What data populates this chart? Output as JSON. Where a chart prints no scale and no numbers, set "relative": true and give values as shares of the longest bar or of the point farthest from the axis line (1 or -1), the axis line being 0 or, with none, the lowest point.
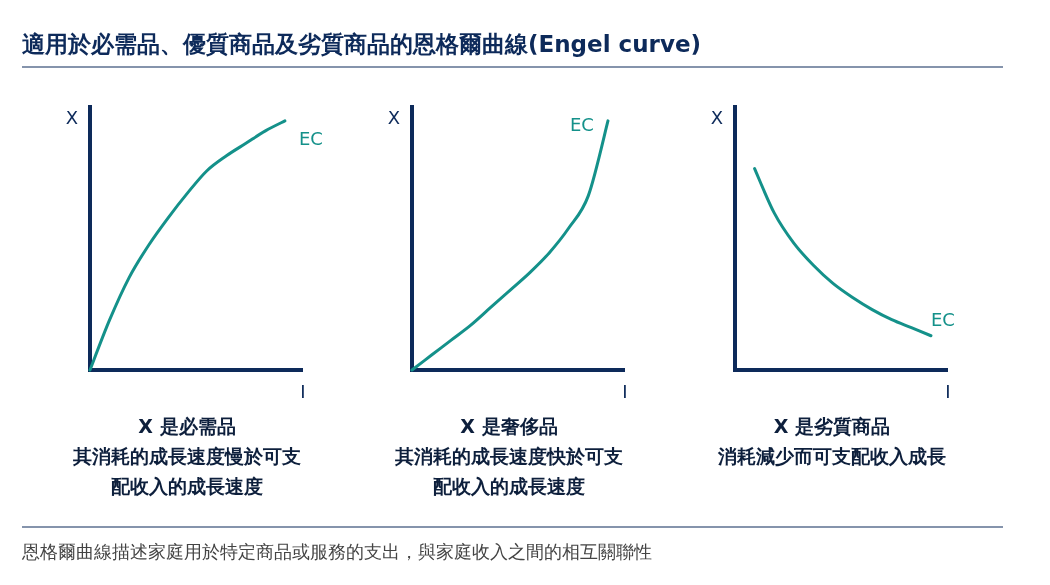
{
  "chart_data": [
    {
      "type": "line",
      "title": "適用於必需品、優質商品及劣質商品的恩格爾曲線(Engel curve)",
      "xlabel": "I",
      "ylabel": "X",
      "relative": true,
      "categories": [
        null,
        null,
        null,
        null,
        null,
        null,
        null,
        null,
        null,
        null,
        null
      ],
      "series": [
        {
          "name": "EC",
          "color": "#14918a",
          "values": [
            0,
            0.2,
            0.37,
            0.5,
            0.61,
            0.71,
            0.8,
            0.86,
            0.91,
            0.96,
            1
          ]
        }
      ],
      "annotations": [
        "X 是必需品",
        "其消耗的成長速度慢於可支配收入的成長速度"
      ]
    },
    {
      "type": "line",
      "xlabel": "I",
      "ylabel": "X",
      "relative": true,
      "categories": [
        null,
        null,
        null,
        null,
        null,
        null,
        null,
        null,
        null,
        null,
        null
      ],
      "series": [
        {
          "name": "EC",
          "color": "#14918a",
          "values": [
            0,
            0.06,
            0.12,
            0.18,
            0.25,
            0.32,
            0.39,
            0.47,
            0.57,
            0.7,
            1
          ]
        }
      ],
      "annotations": [
        "X 是奢侈品",
        "其消耗的成長速度快於可支配收入的成長速度"
      ]
    },
    {
      "type": "line",
      "xlabel": "I",
      "ylabel": "X",
      "relative": true,
      "categories": [
        null,
        null,
        null,
        null,
        null,
        null,
        null,
        null,
        null,
        null,
        null
      ],
      "series": [
        {
          "name": "EC",
          "color": "#14918a",
          "values": [
            null,
            1,
            0.78,
            0.63,
            0.52,
            0.43,
            0.36,
            0.3,
            0.25,
            0.21,
            0.17
          ]
        }
      ],
      "annotations": [
        "X 是劣質商品",
        "消耗減少而可支配收入成長",
        "恩格爾曲線描述家庭用於特定商品或服務的支出，與家庭收入之間的相互關聯性"
      ]
    }
  ]
}
